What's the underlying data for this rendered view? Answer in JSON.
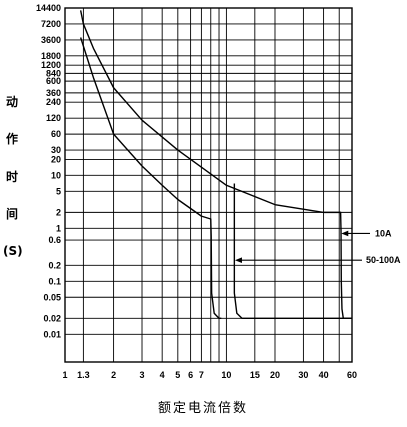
{
  "chart_data": {
    "type": "line",
    "title": "",
    "xlabel": "额定电流倍数",
    "ylabel": [
      "动",
      "作",
      "时",
      "间",
      "(S)"
    ],
    "x_scale": "log",
    "y_scale": "log",
    "xlim": [
      1,
      60
    ],
    "ylim": [
      0.003,
      14400
    ],
    "x_ticks": [
      {
        "value": 1,
        "label": "1"
      },
      {
        "value": 1.3,
        "label": "1.3"
      },
      {
        "value": 2,
        "label": "2"
      },
      {
        "value": 3,
        "label": "3"
      },
      {
        "value": 4,
        "label": "4"
      },
      {
        "value": 5,
        "label": "5"
      },
      {
        "value": 6,
        "label": "6"
      },
      {
        "value": 7,
        "label": "7"
      },
      {
        "value": 8,
        "label": ""
      },
      {
        "value": 9,
        "label": ""
      },
      {
        "value": 10,
        "label": "10"
      },
      {
        "value": 15,
        "label": "15"
      },
      {
        "value": 20,
        "label": "20"
      },
      {
        "value": 30,
        "label": "30"
      },
      {
        "value": 40,
        "label": "40"
      },
      {
        "value": 50,
        "label": ""
      },
      {
        "value": 60,
        "label": "60"
      }
    ],
    "y_ticks": [
      {
        "value": 14400,
        "label": "14400"
      },
      {
        "value": 7200,
        "label": "7200"
      },
      {
        "value": 3600,
        "label": "3600"
      },
      {
        "value": 1800,
        "label": "1800"
      },
      {
        "value": 1200,
        "label": "1200"
      },
      {
        "value": 840,
        "label": "840"
      },
      {
        "value": 600,
        "label": "600"
      },
      {
        "value": 360,
        "label": "360"
      },
      {
        "value": 240,
        "label": "240"
      },
      {
        "value": 120,
        "label": "120"
      },
      {
        "value": 60,
        "label": "60"
      },
      {
        "value": 30,
        "label": "30"
      },
      {
        "value": 20,
        "label": "20"
      },
      {
        "value": 10,
        "label": "10"
      },
      {
        "value": 5,
        "label": "5"
      },
      {
        "value": 2,
        "label": "2"
      },
      {
        "value": 1,
        "label": "1"
      },
      {
        "value": 0.6,
        "label": "0.6"
      },
      {
        "value": 0.2,
        "label": "0.2"
      },
      {
        "value": 0.1,
        "label": "0.1"
      },
      {
        "value": 0.05,
        "label": "0.05"
      },
      {
        "value": 0.02,
        "label": "0.02"
      },
      {
        "value": 0.01,
        "label": "0.01"
      }
    ],
    "grid": true,
    "series": [
      {
        "name": "",
        "points": [
          [
            1.25,
            13000
          ],
          [
            1.3,
            7200
          ],
          [
            1.5,
            2500
          ],
          [
            2,
            450
          ],
          [
            3,
            110
          ],
          [
            5,
            30
          ],
          [
            10,
            6.5
          ],
          [
            20,
            2.8
          ],
          [
            40,
            2.0
          ],
          [
            51,
            2.0
          ],
          [
            51.3,
            0.9
          ],
          [
            51.5,
            0.1
          ],
          [
            52,
            0.03
          ],
          [
            53,
            0.02
          ],
          [
            60,
            0.02
          ]
        ]
      },
      {
        "name": "",
        "points": [
          [
            1.25,
            4000
          ],
          [
            1.5,
            700
          ],
          [
            2,
            60
          ],
          [
            3,
            15
          ],
          [
            4,
            6.5
          ],
          [
            5,
            3.5
          ],
          [
            7,
            1.7
          ],
          [
            8,
            1.5
          ],
          [
            8.05,
            0.7
          ],
          [
            8.1,
            0.06
          ],
          [
            8.4,
            0.025
          ],
          [
            9,
            0.02
          ],
          [
            9.3,
            0.02
          ]
        ]
      },
      {
        "name": "",
        "points": [
          [
            11.2,
            7
          ],
          [
            11.2,
            0.06
          ],
          [
            11.6,
            0.025
          ],
          [
            12.5,
            0.02
          ],
          [
            15,
            0.02
          ],
          [
            60,
            0.02
          ]
        ]
      }
    ],
    "annotations": [
      {
        "text": "10A",
        "arrow_to": [
          51.5,
          0.8
        ]
      },
      {
        "text": "50-100A",
        "arrow_to": [
          11.3,
          0.25
        ]
      }
    ]
  }
}
